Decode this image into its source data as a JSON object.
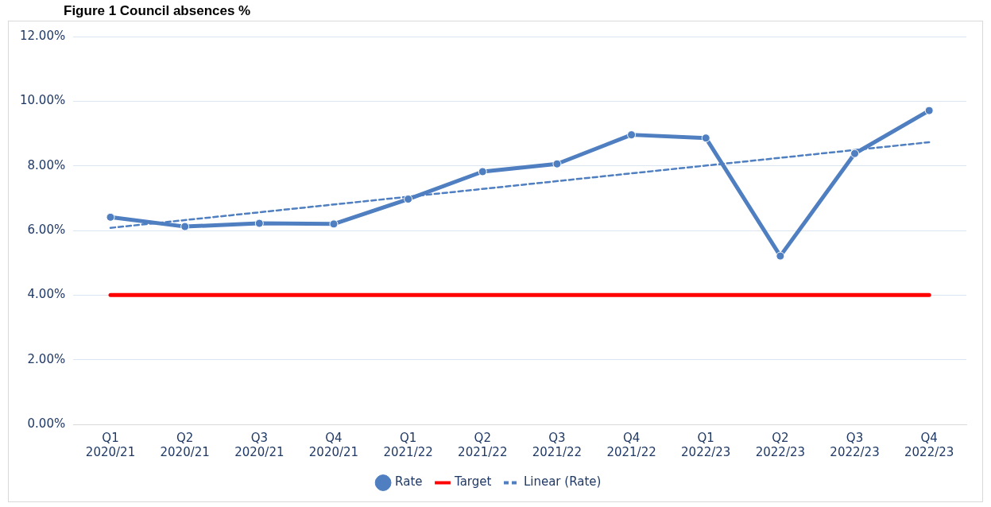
{
  "chart_data": {
    "type": "line",
    "title": "Figure 1 Council absences %",
    "categories": [
      "Q1 2020/21",
      "Q2 2020/21",
      "Q3 2020/21",
      "Q4 2020/21",
      "Q1 2021/22",
      "Q2 2021/22",
      "Q3 2021/22",
      "Q4 2021/22",
      "Q1 2022/23",
      "Q2 2022/23",
      "Q3 2022/23",
      "Q4 2022/23"
    ],
    "series": [
      {
        "name": "Rate",
        "color": "#4f7fc0",
        "marker": "circle",
        "values": [
          6.41,
          6.12,
          6.22,
          6.2,
          6.97,
          7.82,
          8.06,
          8.96,
          8.86,
          5.21,
          8.38,
          9.71
        ]
      },
      {
        "name": "Target",
        "color": "#ff0000",
        "marker": "none",
        "values": [
          4,
          4,
          4,
          4,
          4,
          4,
          4,
          4,
          4,
          4,
          4,
          4
        ]
      },
      {
        "name": "Linear (Rate)",
        "color": "#4f7fc0",
        "marker": "none",
        "line_style": "dashed",
        "x": [
          "Q1 2020/21",
          "Q4 2022/23"
        ],
        "values": [
          6.08,
          8.73
        ]
      }
    ],
    "ylim": [
      0,
      12
    ],
    "yticks": [
      {
        "value": 0,
        "label": "0.00%"
      },
      {
        "value": 2,
        "label": "2.00%"
      },
      {
        "value": 4,
        "label": "4.00%"
      },
      {
        "value": 6,
        "label": "6.00%"
      },
      {
        "value": 8,
        "label": "8.00%"
      },
      {
        "value": 10,
        "label": "10.00%"
      },
      {
        "value": 12,
        "label": "12.00%"
      }
    ],
    "grid": "y",
    "legend": "bottom"
  }
}
